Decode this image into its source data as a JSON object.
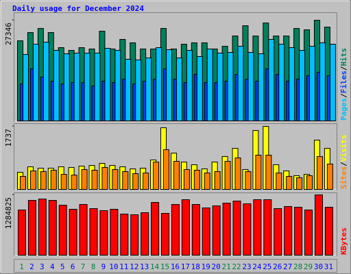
{
  "chart_data": [
    {
      "type": "bar",
      "title": "Daily usage for December 2024",
      "title_color": "#0000ff",
      "ylim": [
        0,
        27346
      ],
      "yticks": [
        27346
      ],
      "legend_separator": "/",
      "series": [
        {
          "name": "Hits",
          "color": "#00805c",
          "values": [
            21762,
            23994,
            25110,
            23994,
            19902,
            19158,
            19902,
            19530,
            24366,
            19530,
            22134,
            21204,
            19530,
            19530,
            25110,
            19530,
            20832,
            21204,
            21204,
            19530,
            20274,
            23064,
            25854,
            23064,
            26598,
            23064,
            23064,
            25110,
            24738,
            27346,
            25482
          ]
        },
        {
          "name": "Files",
          "color": "#0040ff",
          "values": [
            10044,
            14136,
            11904,
            10788,
            10044,
            10416,
            10416,
            9486,
            10788,
            10416,
            11346,
            10044,
            10788,
            11346,
            14136,
            11346,
            10416,
            12648,
            10416,
            10416,
            10788,
            12648,
            11346,
            10788,
            14136,
            12648,
            10788,
            11346,
            12276,
            13206,
            12276
          ]
        },
        {
          "name": "Pages",
          "color": "#00c0ff",
          "values": [
            18042,
            20832,
            21390,
            19158,
            18228,
            18414,
            18414,
            18414,
            19716,
            19158,
            16740,
            16554,
            17112,
            19902,
            19344,
            17112,
            19158,
            17484,
            19530,
            18414,
            18600,
            20274,
            18600,
            18228,
            22134,
            20832,
            19902,
            19158,
            20274,
            21204,
            20832
          ]
        }
      ]
    },
    {
      "type": "bar",
      "ylim": [
        0,
        1737
      ],
      "yticks": [
        1737
      ],
      "legend_separator": "/",
      "series": [
        {
          "name": "Visits",
          "color": "#ffff00",
          "values": [
            472,
            623,
            585,
            585,
            623,
            604,
            642,
            661,
            717,
            661,
            623,
            566,
            585,
            812,
            1699,
            1001,
            755,
            680,
            566,
            755,
            906,
            1133,
            548,
            1624,
            1737,
            680,
            510,
            378,
            415,
            1359,
            1133
          ]
        },
        {
          "name": "Sites",
          "color": "#ff8000",
          "values": [
            359,
            510,
            491,
            529,
            415,
            396,
            548,
            529,
            604,
            548,
            491,
            434,
            453,
            755,
            1095,
            774,
            548,
            529,
            453,
            491,
            774,
            868,
            491,
            944,
            944,
            453,
            359,
            321,
            378,
            906,
            699
          ]
        }
      ]
    },
    {
      "type": "bar",
      "ylim": [
        0,
        1284825
      ],
      "yticks": [
        1284825
      ],
      "categories": [
        "1",
        "2",
        "3",
        "4",
        "5",
        "6",
        "7",
        "8",
        "9",
        "10",
        "11",
        "12",
        "13",
        "14",
        "15",
        "16",
        "17",
        "18",
        "19",
        "20",
        "21",
        "22",
        "23",
        "24",
        "25",
        "26",
        "27",
        "28",
        "29",
        "30",
        "31"
      ],
      "category_colors": [
        "#008040",
        "#0000ff",
        "#0000ff",
        "#0000ff",
        "#0000ff",
        "#0000ff",
        "#008040",
        "#008040",
        "#0000ff",
        "#0000ff",
        "#0000ff",
        "#0000ff",
        "#0000ff",
        "#008040",
        "#008040",
        "#0000ff",
        "#0000ff",
        "#0000ff",
        "#0000ff",
        "#0000ff",
        "#008040",
        "#008040",
        "#0000ff",
        "#0000ff",
        "#0000ff",
        "#0000ff",
        "#0000ff",
        "#008040",
        "#008040",
        "#0000ff",
        "#0000ff"
      ],
      "series": [
        {
          "name": "KBytes",
          "color": "#ff0000",
          "values": [
            963600,
            1168000,
            1197200,
            1168000,
            1065800,
            978200,
            1080400,
            992800,
            949000,
            978200,
            876000,
            861400,
            905200,
            1124200,
            890600,
            1080400,
            1182600,
            1080400,
            1007400,
            1051200,
            1109600,
            1153400,
            1095000,
            1182600,
            1182600,
            992800,
            1036600,
            1022000,
            963600,
            1284825,
            1022000
          ]
        }
      ]
    }
  ]
}
